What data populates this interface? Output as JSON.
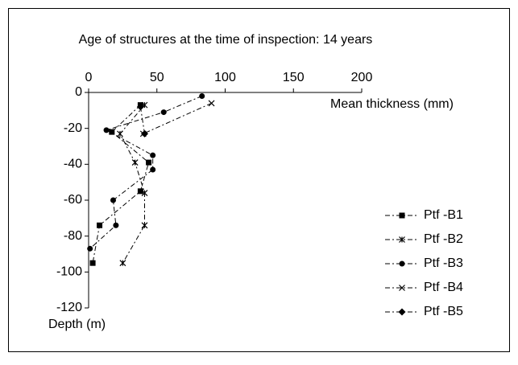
{
  "chart_data": {
    "type": "line",
    "title": "Age of structures at the time of inspection: 14 years",
    "xlabel": "Mean thickness (mm)",
    "ylabel": "Depth (m)",
    "xlim": [
      0,
      200
    ],
    "xticks": [
      0,
      50,
      100,
      150,
      200
    ],
    "ylim": [
      -120,
      0
    ],
    "yticks": [
      0,
      -20,
      -40,
      -60,
      -80,
      -100,
      -120
    ],
    "legend": "right",
    "series": [
      {
        "name": "Ptf -B1",
        "color": "#000000",
        "marker": "square",
        "x": [
          38,
          17,
          44,
          38,
          8,
          3
        ],
        "values": [
          -7,
          -22,
          -39,
          -55,
          -74,
          -95
        ]
      },
      {
        "name": "Ptf -B2",
        "color": "#000000",
        "marker": "asterisk",
        "x": [
          41,
          23,
          34,
          41,
          41,
          25
        ],
        "values": [
          -7,
          -23,
          -39,
          -56,
          -74,
          -95
        ]
      },
      {
        "name": "Ptf -B3",
        "color": "#000000",
        "marker": "circle",
        "x": [
          83,
          55,
          13,
          47,
          47,
          18,
          20,
          1
        ],
        "values": [
          -2,
          -11,
          -21,
          -35,
          -43,
          -60,
          -74,
          -87
        ]
      },
      {
        "name": "Ptf -B4",
        "color": "#000000",
        "marker": "cross",
        "x": [
          90,
          40
        ],
        "values": [
          -6,
          -23
        ]
      },
      {
        "name": "Ptf -B5",
        "color": "#000000",
        "marker": "diamond",
        "x": [
          38,
          41
        ],
        "values": [
          -8,
          -23
        ]
      }
    ]
  }
}
